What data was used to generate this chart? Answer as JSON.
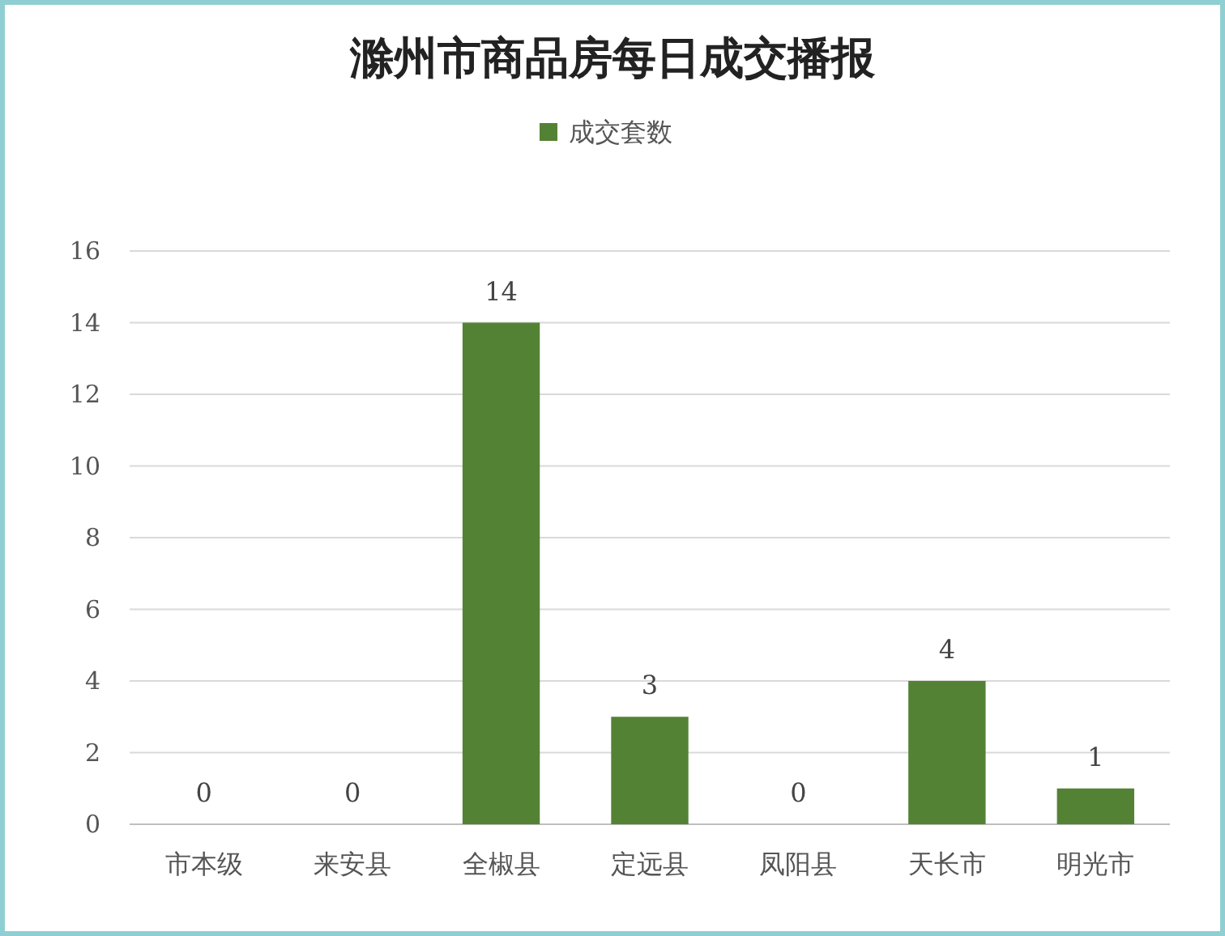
{
  "chart_data": {
    "type": "bar",
    "title": "滁州市商品房每日成交播报",
    "categories": [
      "市本级",
      "来安县",
      "全椒县",
      "定远县",
      "凤阳县",
      "天长市",
      "明光市"
    ],
    "series": [
      {
        "name": "成交套数",
        "color": "#548235",
        "values": [
          0,
          0,
          14,
          3,
          0,
          4,
          1
        ]
      }
    ],
    "ylim": [
      0,
      16
    ],
    "yticks": [
      0,
      2,
      4,
      6,
      8,
      10,
      12,
      14,
      16
    ],
    "grid": "y",
    "legend": "top",
    "data_labels": true
  }
}
